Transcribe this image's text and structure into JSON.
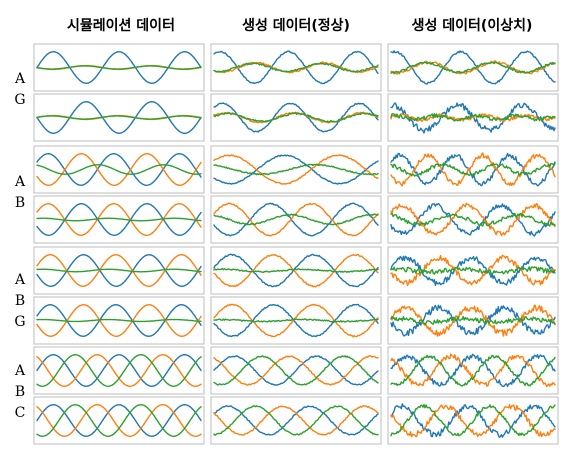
{
  "chart_data": {
    "type": "line",
    "column_titles": [
      "시뮬레이션 데이터",
      "생성 데이터(정상)",
      "생성 데이터(이상치)"
    ],
    "row_labels": [
      "A G",
      "A B",
      "A B G",
      "A B C"
    ],
    "colors": {
      "A": "#1f77b4",
      "B": "#ff7f0e",
      "G": "#2ca02c",
      "C": "#2ca02c"
    },
    "grid": false,
    "axes_visible": false,
    "panels": [
      {
        "row": 0,
        "col": 0,
        "y_max": 1.3,
        "curves": [
          {
            "role": "bottom",
            "color": "#1f77b4",
            "amp": 1.0,
            "cycles": 2.5,
            "phase": 3.14,
            "noise": 0
          },
          {
            "role": "bottom",
            "color": "#ff7f0e",
            "amp": 0.12,
            "cycles": 2.5,
            "phase": 0.0,
            "noise": 0
          },
          {
            "role": "bottom",
            "color": "#2ca02c",
            "amp": 0.1,
            "cycles": 2.5,
            "phase": 0.2,
            "noise": 0
          },
          {
            "role": "top",
            "color": "#1f77b4",
            "amp": 1.0,
            "cycles": 2.5,
            "phase": 0.0,
            "noise": 0
          },
          {
            "role": "top",
            "color": "#ff7f0e",
            "amp": 0.12,
            "cycles": 2.5,
            "phase": 3.14,
            "noise": 0
          },
          {
            "role": "top",
            "color": "#2ca02c",
            "amp": 0.1,
            "cycles": 2.5,
            "phase": 3.3,
            "noise": 0
          }
        ]
      },
      {
        "row": 0,
        "col": 1,
        "y_max": 1.3,
        "curves": [
          {
            "role": "top",
            "color": "#1f77b4",
            "amp": 1.0,
            "cycles": 2.4,
            "phase": 1.0,
            "noise": 0.04
          },
          {
            "role": "top",
            "color": "#ff7f0e",
            "amp": 0.3,
            "cycles": 2.4,
            "phase": 4.0,
            "noise": 0.05
          },
          {
            "role": "top",
            "color": "#2ca02c",
            "amp": 0.25,
            "cycles": 2.4,
            "phase": 4.3,
            "noise": 0.05
          },
          {
            "role": "bottom",
            "color": "#1f77b4",
            "amp": 0.9,
            "cycles": 2.4,
            "phase": 0.8,
            "noise": 0.04
          },
          {
            "role": "bottom",
            "color": "#ff7f0e",
            "amp": 0.3,
            "cycles": 2.4,
            "phase": 0.5,
            "noise": 0.05
          },
          {
            "role": "bottom",
            "color": "#2ca02c",
            "amp": 0.25,
            "cycles": 2.4,
            "phase": 0.3,
            "noise": 0.05
          }
        ]
      },
      {
        "row": 0,
        "col": 2,
        "y_max": 1.3,
        "curves": [
          {
            "role": "top",
            "color": "#1f77b4",
            "amp": 1.0,
            "cycles": 2.5,
            "phase": 1.2,
            "noise": 0.06
          },
          {
            "role": "top",
            "color": "#ff7f0e",
            "amp": 0.35,
            "cycles": 2.5,
            "phase": 4.2,
            "noise": 0.07
          },
          {
            "role": "top",
            "color": "#2ca02c",
            "amp": 0.3,
            "cycles": 2.5,
            "phase": 4.5,
            "noise": 0.07
          },
          {
            "role": "bottom",
            "color": "#1f77b4",
            "amp": 0.8,
            "cycles": 2.5,
            "phase": 1.5,
            "noise": 0.18
          },
          {
            "role": "bottom",
            "color": "#ff7f0e",
            "amp": 0.15,
            "cycles": 4.0,
            "phase": 0.0,
            "noise": 0.12
          },
          {
            "role": "bottom",
            "color": "#2ca02c",
            "amp": 0.12,
            "cycles": 4.0,
            "phase": 1.0,
            "noise": 0.12
          }
        ]
      },
      {
        "row": 1,
        "col": 0,
        "y_max": 1.3,
        "curves": [
          {
            "role": "top",
            "color": "#1f77b4",
            "amp": 1.0,
            "cycles": 2.5,
            "phase": 0.5,
            "noise": 0
          },
          {
            "role": "top",
            "color": "#ff7f0e",
            "amp": 1.0,
            "cycles": 2.5,
            "phase": 3.6,
            "noise": 0
          },
          {
            "role": "top",
            "color": "#2ca02c",
            "amp": 0.3,
            "cycles": 2.5,
            "phase": 2.0,
            "noise": 0
          },
          {
            "role": "bottom",
            "color": "#1f77b4",
            "amp": 1.0,
            "cycles": 2.5,
            "phase": 3.6,
            "noise": 0
          },
          {
            "role": "bottom",
            "color": "#ff7f0e",
            "amp": 1.0,
            "cycles": 2.5,
            "phase": 0.5,
            "noise": 0
          },
          {
            "role": "bottom",
            "color": "#2ca02c",
            "amp": 0.08,
            "cycles": 2.5,
            "phase": 1.0,
            "noise": 0
          }
        ]
      },
      {
        "row": 1,
        "col": 1,
        "y_max": 1.3,
        "curves": [
          {
            "role": "top",
            "color": "#1f77b4",
            "amp": 0.9,
            "cycles": 1.5,
            "phase": 3.8,
            "noise": 0.04
          },
          {
            "role": "top",
            "color": "#ff7f0e",
            "amp": 0.9,
            "cycles": 1.5,
            "phase": 0.7,
            "noise": 0.04
          },
          {
            "role": "top",
            "color": "#2ca02c",
            "amp": 0.3,
            "cycles": 1.5,
            "phase": 2.0,
            "noise": 0.04
          },
          {
            "role": "bottom",
            "color": "#1f77b4",
            "amp": 1.0,
            "cycles": 2.0,
            "phase": 3.5,
            "noise": 0.04
          },
          {
            "role": "bottom",
            "color": "#ff7f0e",
            "amp": 1.0,
            "cycles": 2.0,
            "phase": 0.4,
            "noise": 0.04
          },
          {
            "role": "bottom",
            "color": "#2ca02c",
            "amp": 0.3,
            "cycles": 2.0,
            "phase": 2.0,
            "noise": 0.04
          }
        ]
      },
      {
        "row": 1,
        "col": 2,
        "y_max": 1.3,
        "curves": [
          {
            "role": "top",
            "color": "#1f77b4",
            "amp": 0.9,
            "cycles": 3.0,
            "phase": 0.5,
            "noise": 0.15
          },
          {
            "role": "top",
            "color": "#ff7f0e",
            "amp": 0.9,
            "cycles": 3.0,
            "phase": 3.6,
            "noise": 0.15
          },
          {
            "role": "top",
            "color": "#2ca02c",
            "amp": 0.3,
            "cycles": 3.0,
            "phase": 2.0,
            "noise": 0.12
          },
          {
            "role": "bottom",
            "color": "#1f77b4",
            "amp": 0.9,
            "cycles": 2.5,
            "phase": 3.6,
            "noise": 0.15
          },
          {
            "role": "bottom",
            "color": "#ff7f0e",
            "amp": 0.9,
            "cycles": 2.5,
            "phase": 0.5,
            "noise": 0.15
          },
          {
            "role": "bottom",
            "color": "#2ca02c",
            "amp": 0.3,
            "cycles": 2.5,
            "phase": 2.0,
            "noise": 0.12
          }
        ]
      },
      {
        "row": 2,
        "col": 0,
        "y_max": 1.3,
        "curves": [
          {
            "role": "top",
            "color": "#1f77b4",
            "amp": 1.0,
            "cycles": 2.5,
            "phase": 3.4,
            "noise": 0
          },
          {
            "role": "top",
            "color": "#ff7f0e",
            "amp": 1.0,
            "cycles": 2.5,
            "phase": 0.3,
            "noise": 0
          },
          {
            "role": "top",
            "color": "#2ca02c",
            "amp": 0.08,
            "cycles": 2.5,
            "phase": 1.0,
            "noise": 0
          },
          {
            "role": "bottom",
            "color": "#1f77b4",
            "amp": 1.0,
            "cycles": 2.5,
            "phase": 0.3,
            "noise": 0
          },
          {
            "role": "bottom",
            "color": "#ff7f0e",
            "amp": 1.0,
            "cycles": 2.5,
            "phase": 3.4,
            "noise": 0
          },
          {
            "role": "bottom",
            "color": "#2ca02c",
            "amp": 0.06,
            "cycles": 2.5,
            "phase": 1.0,
            "noise": 0
          }
        ]
      },
      {
        "row": 2,
        "col": 1,
        "y_max": 1.3,
        "curves": [
          {
            "role": "top",
            "color": "#1f77b4",
            "amp": 1.0,
            "cycles": 2.0,
            "phase": 0.2,
            "noise": 0.04
          },
          {
            "role": "top",
            "color": "#ff7f0e",
            "amp": 1.0,
            "cycles": 2.0,
            "phase": 3.3,
            "noise": 0.04
          },
          {
            "role": "top",
            "color": "#2ca02c",
            "amp": 0.08,
            "cycles": 2.0,
            "phase": 1.0,
            "noise": 0.04
          },
          {
            "role": "bottom",
            "color": "#1f77b4",
            "amp": 1.0,
            "cycles": 2.0,
            "phase": 3.3,
            "noise": 0.04
          },
          {
            "role": "bottom",
            "color": "#ff7f0e",
            "amp": 1.0,
            "cycles": 2.0,
            "phase": 0.2,
            "noise": 0.04
          },
          {
            "role": "bottom",
            "color": "#2ca02c",
            "amp": 0.06,
            "cycles": 2.0,
            "phase": 1.0,
            "noise": 0.04
          }
        ]
      },
      {
        "row": 2,
        "col": 2,
        "y_max": 1.3,
        "curves": [
          {
            "role": "top",
            "color": "#1f77b4",
            "amp": 0.8,
            "cycles": 2.5,
            "phase": 0.2,
            "noise": 0.18
          },
          {
            "role": "top",
            "color": "#ff7f0e",
            "amp": 0.8,
            "cycles": 2.5,
            "phase": 3.3,
            "noise": 0.18
          },
          {
            "role": "top",
            "color": "#2ca02c",
            "amp": 0.1,
            "cycles": 2.5,
            "phase": 1.0,
            "noise": 0.15
          },
          {
            "role": "bottom",
            "color": "#1f77b4",
            "amp": 0.8,
            "cycles": 2.5,
            "phase": 3.3,
            "noise": 0.2
          },
          {
            "role": "bottom",
            "color": "#ff7f0e",
            "amp": 0.8,
            "cycles": 2.5,
            "phase": 0.2,
            "noise": 0.2
          },
          {
            "role": "bottom",
            "color": "#2ca02c",
            "amp": 0.12,
            "cycles": 2.5,
            "phase": 1.0,
            "noise": 0.15
          }
        ]
      },
      {
        "row": 3,
        "col": 0,
        "y_max": 1.3,
        "curves": [
          {
            "role": "top",
            "color": "#1f77b4",
            "amp": 1.0,
            "cycles": 2.5,
            "phase": 0.0,
            "noise": 0
          },
          {
            "role": "top",
            "color": "#ff7f0e",
            "amp": 1.0,
            "cycles": 2.5,
            "phase": 2.09,
            "noise": 0
          },
          {
            "role": "top",
            "color": "#2ca02c",
            "amp": 1.0,
            "cycles": 2.5,
            "phase": 4.19,
            "noise": 0
          },
          {
            "role": "bottom",
            "color": "#1f77b4",
            "amp": 1.0,
            "cycles": 2.5,
            "phase": 0.0,
            "noise": 0
          },
          {
            "role": "bottom",
            "color": "#ff7f0e",
            "amp": 1.0,
            "cycles": 2.5,
            "phase": 2.09,
            "noise": 0
          },
          {
            "role": "bottom",
            "color": "#2ca02c",
            "amp": 1.0,
            "cycles": 2.5,
            "phase": 4.19,
            "noise": 0
          }
        ]
      },
      {
        "row": 3,
        "col": 1,
        "y_max": 1.3,
        "curves": [
          {
            "role": "top",
            "color": "#1f77b4",
            "amp": 0.9,
            "cycles": 2.0,
            "phase": 0.0,
            "noise": 0.04
          },
          {
            "role": "top",
            "color": "#ff7f0e",
            "amp": 0.9,
            "cycles": 2.0,
            "phase": 2.09,
            "noise": 0.04
          },
          {
            "role": "top",
            "color": "#2ca02c",
            "amp": 0.9,
            "cycles": 2.0,
            "phase": 4.19,
            "noise": 0.04
          },
          {
            "role": "bottom",
            "color": "#1f77b4",
            "amp": 0.9,
            "cycles": 2.0,
            "phase": 0.5,
            "noise": 0.04
          },
          {
            "role": "bottom",
            "color": "#ff7f0e",
            "amp": 0.9,
            "cycles": 2.0,
            "phase": 2.6,
            "noise": 0.04
          },
          {
            "role": "bottom",
            "color": "#2ca02c",
            "amp": 0.9,
            "cycles": 2.0,
            "phase": 4.7,
            "noise": 0.04
          }
        ]
      },
      {
        "row": 3,
        "col": 2,
        "y_max": 1.3,
        "curves": [
          {
            "role": "top",
            "color": "#1f77b4",
            "amp": 0.9,
            "cycles": 2.5,
            "phase": 0.0,
            "noise": 0.15
          },
          {
            "role": "top",
            "color": "#ff7f0e",
            "amp": 0.9,
            "cycles": 2.5,
            "phase": 2.09,
            "noise": 0.15
          },
          {
            "role": "top",
            "color": "#2ca02c",
            "amp": 0.9,
            "cycles": 2.5,
            "phase": 4.19,
            "noise": 0.1
          },
          {
            "role": "bottom",
            "color": "#1f77b4",
            "amp": 0.9,
            "cycles": 2.5,
            "phase": 0.5,
            "noise": 0.18
          },
          {
            "role": "bottom",
            "color": "#ff7f0e",
            "amp": 0.9,
            "cycles": 2.5,
            "phase": 2.6,
            "noise": 0.18
          },
          {
            "role": "bottom",
            "color": "#2ca02c",
            "amp": 0.9,
            "cycles": 2.5,
            "phase": 4.7,
            "noise": 0.1
          }
        ]
      }
    ]
  }
}
